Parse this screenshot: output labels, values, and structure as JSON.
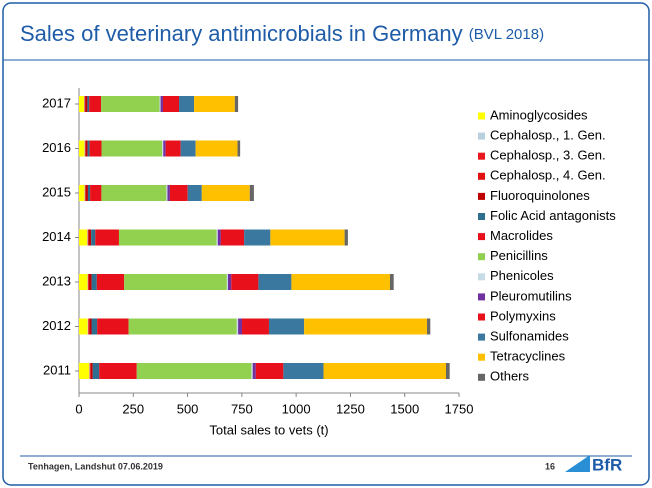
{
  "chart_data": {
    "type": "stacked-bar-horizontal",
    "title": "Sales of veterinary antimicrobials in Germany",
    "subtitle": "(BVL 2018)",
    "xlabel": "Total sales to vets (t)",
    "categories": [
      "2017",
      "2016",
      "2015",
      "2014",
      "2013",
      "2012",
      "2011"
    ],
    "xlim": [
      0,
      1750
    ],
    "xticks": [
      0,
      250,
      500,
      750,
      1000,
      1250,
      1500,
      1750
    ],
    "legend": "right",
    "series": [
      {
        "name": "Aminoglycosides",
        "color": "#ffff00",
        "values": [
          23,
          25,
          25,
          38,
          39,
          40,
          47
        ]
      },
      {
        "name": "Cephalosp., 1. Gen.",
        "color": "#b9d0de",
        "values": [
          2,
          2,
          2,
          2,
          2,
          2,
          2
        ]
      },
      {
        "name": "Cephalosp., 3. Gen.",
        "color": "#e8181e",
        "values": [
          2.2,
          2.3,
          2.3,
          2.3,
          3.4,
          3.5,
          3.7
        ]
      },
      {
        "name": "Cephalosp., 4. Gen.",
        "color": "#e01010",
        "values": [
          1,
          1.2,
          1.3,
          1.4,
          1.5,
          1.7,
          2.1
        ]
      },
      {
        "name": "Fluoroquinolones",
        "color": "#c00000",
        "values": [
          10.5,
          9.3,
          10.6,
          12.3,
          12.1,
          10.4,
          8.2
        ]
      },
      {
        "name": "Folic Acid antagonists",
        "color": "#2e6e8e",
        "values": [
          8,
          9,
          10,
          19,
          24,
          26,
          30
        ]
      },
      {
        "name": "Macrolides",
        "color": "#e8101a",
        "values": [
          55,
          55,
          52,
          109,
          126,
          145,
          173
        ]
      },
      {
        "name": "Penicillins",
        "color": "#92d050",
        "values": [
          269,
          279,
          299,
          450,
          473,
          498,
          528
        ]
      },
      {
        "name": "Phenicoles",
        "color": "#c6dbe6",
        "values": [
          5,
          5.3,
          5.3,
          5.3,
          5.2,
          6.2,
          6.1
        ]
      },
      {
        "name": "Pleuromutilins",
        "color": "#7030a0",
        "values": [
          11,
          11,
          11,
          14,
          15,
          18,
          14
        ]
      },
      {
        "name": "Polymyxins",
        "color": "#e8101a",
        "values": [
          74,
          69,
          82,
          107,
          125,
          124,
          127
        ]
      },
      {
        "name": "Sulfonamides",
        "color": "#3a78a0",
        "values": [
          69,
          69,
          65,
          121,
          152,
          162,
          185
        ]
      },
      {
        "name": "Tetracyclines",
        "color": "#ffc000",
        "values": [
          188,
          193,
          221,
          342,
          454,
          566,
          564
        ]
      },
      {
        "name": "Others",
        "color": "#666666",
        "values": [
          15,
          12,
          19,
          15,
          17,
          15,
          17
        ]
      }
    ]
  },
  "footer": {
    "left": "Tenhagen, Landshut 07.06.2019",
    "page": "16",
    "logo": "BfR"
  }
}
